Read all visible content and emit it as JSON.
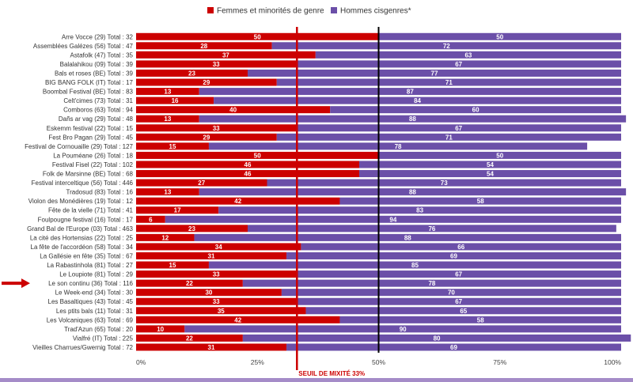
{
  "chart_data": {
    "type": "bar",
    "orientation": "horizontal",
    "stacked": true,
    "normalized_percent": true,
    "legend_position": "top-center",
    "colors": {
      "women": "#cc0000",
      "men": "#6b4fa8",
      "threshold": "#cc0000",
      "midline": "#000000",
      "footer_band": "#a58cc8"
    },
    "series": [
      {
        "name": "Femmes et minorités de genre",
        "values": [
          50,
          28,
          37,
          33,
          23,
          29,
          13,
          16,
          40,
          13,
          33,
          29,
          15,
          50,
          46,
          46,
          27,
          13,
          42,
          17,
          6,
          23,
          12,
          34,
          31,
          15,
          33,
          22,
          30,
          33,
          35,
          42,
          10,
          22,
          31
        ]
      },
      {
        "name": "Hommes cisgenres*",
        "values": [
          50,
          72,
          63,
          67,
          77,
          71,
          87,
          84,
          60,
          88,
          67,
          71,
          78,
          50,
          54,
          54,
          73,
          88,
          58,
          83,
          94,
          76,
          88,
          66,
          69,
          85,
          67,
          78,
          70,
          67,
          65,
          58,
          90,
          80,
          69
        ]
      }
    ],
    "categories": [
      "Arre Vocce (29) Total : 32",
      "Assemblées Galézes (56) Total : 47",
      "Astafolk (47) Total : 35",
      "Balalahikou (09) Total : 39",
      "Bals et roses (BE) Total : 39",
      "BIG BANG FOLK (IT) Total : 17",
      "Boombal Festival (BE) Total : 83",
      "Celt'cimes (73) Total : 31",
      "Comboros (63) Total : 94",
      "Dañs ar vag (29) Total : 48",
      "Eskemm festival (22) Total : 15",
      "Fest Bro Pagan (29) Total : 45",
      "Festival de Cornouaille (29) Total : 127",
      "La Pouméane (26) Total : 18",
      "Festival Fisel (22) Total : 102",
      "Folk de Marsinne (BE) Total : 68",
      "Festival interceltique (56) Total : 446",
      "Tradosud (83) Total : 16",
      "Violon des Monédières (19) Total : 12",
      "Fête de la vielle (71) Total : 41",
      "Foulpougne festival (16) Total : 17",
      "Grand Bal de l'Europe (03) Total : 463",
      "La cité des Hortensias (22) Total : 25",
      "La fête de l'accordéon (58) Total : 34",
      "La Gallésie en fête (35) Total : 67",
      "La Rabastinhola (81) Total : 27",
      "Le Loupiote (81) Total : 29",
      "Le son continu (36) Total : 116",
      "Le Week-end (34) Total : 30",
      "Les Basaltiques (43) Total : 45",
      "Les ptits bals (11) Total : 31",
      "Les Volcaniques (63) Total : 69",
      "Trad'Azun (65) Total : 20",
      "Vialfré (IT) Total : 225",
      "Vieilles Charrues/Gwernig Total : 72"
    ],
    "x_ticks": [
      "0%",
      "25%",
      "50%",
      "75%",
      "100%"
    ],
    "xlim": [
      0,
      100
    ],
    "threshold": {
      "value": 33,
      "label": "SEUIL DE MIXITÉ 33%"
    },
    "midline_value": 50,
    "highlighted_category": "Le son continu (36) Total : 116",
    "title": "",
    "xlabel": "",
    "ylabel": ""
  }
}
